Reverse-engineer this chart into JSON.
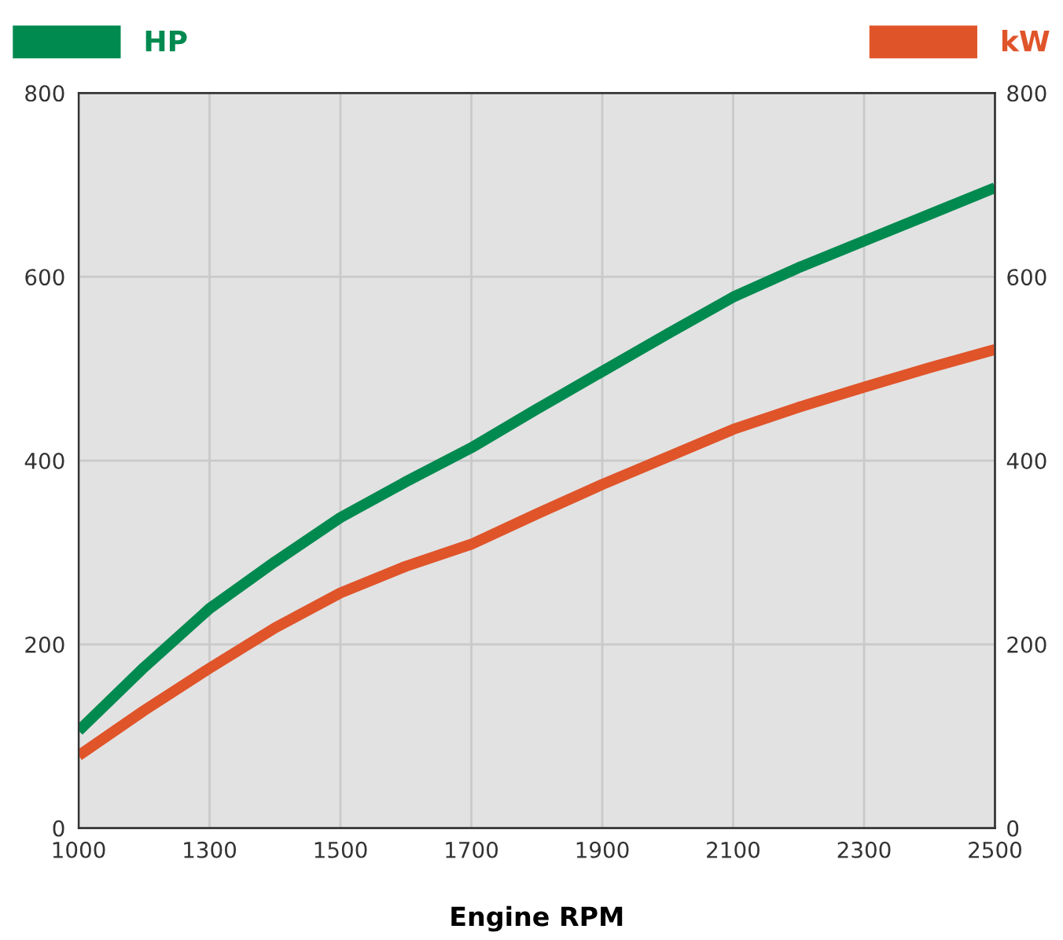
{
  "chart_data": {
    "type": "line",
    "xlabel": "Engine RPM",
    "categories": [
      "1000",
      null,
      "1300",
      null,
      "1500",
      null,
      "1700",
      null,
      "1900",
      null,
      "2100",
      null,
      "2300",
      null,
      "2500"
    ],
    "series": [
      {
        "name": "HP",
        "color": "#008a50",
        "values": [
          106,
          175,
          239,
          290,
          338,
          377,
          414,
          456,
          497,
          538,
          578,
          610,
          639,
          668,
          697
        ]
      },
      {
        "name": "kW",
        "color": "#e0542a",
        "values": [
          79,
          128,
          174,
          218,
          256,
          285,
          309,
          342,
          374,
          404,
          434,
          458,
          480,
          501,
          521
        ]
      }
    ],
    "ylim": [
      0,
      800
    ],
    "yticks": [
      0,
      200,
      400,
      600,
      800
    ],
    "y2lim": [
      0,
      800
    ],
    "y2ticks": [
      0,
      200,
      400,
      600,
      800
    ],
    "grid": true,
    "legend": "top",
    "marker": "none",
    "line_style": "solid"
  }
}
